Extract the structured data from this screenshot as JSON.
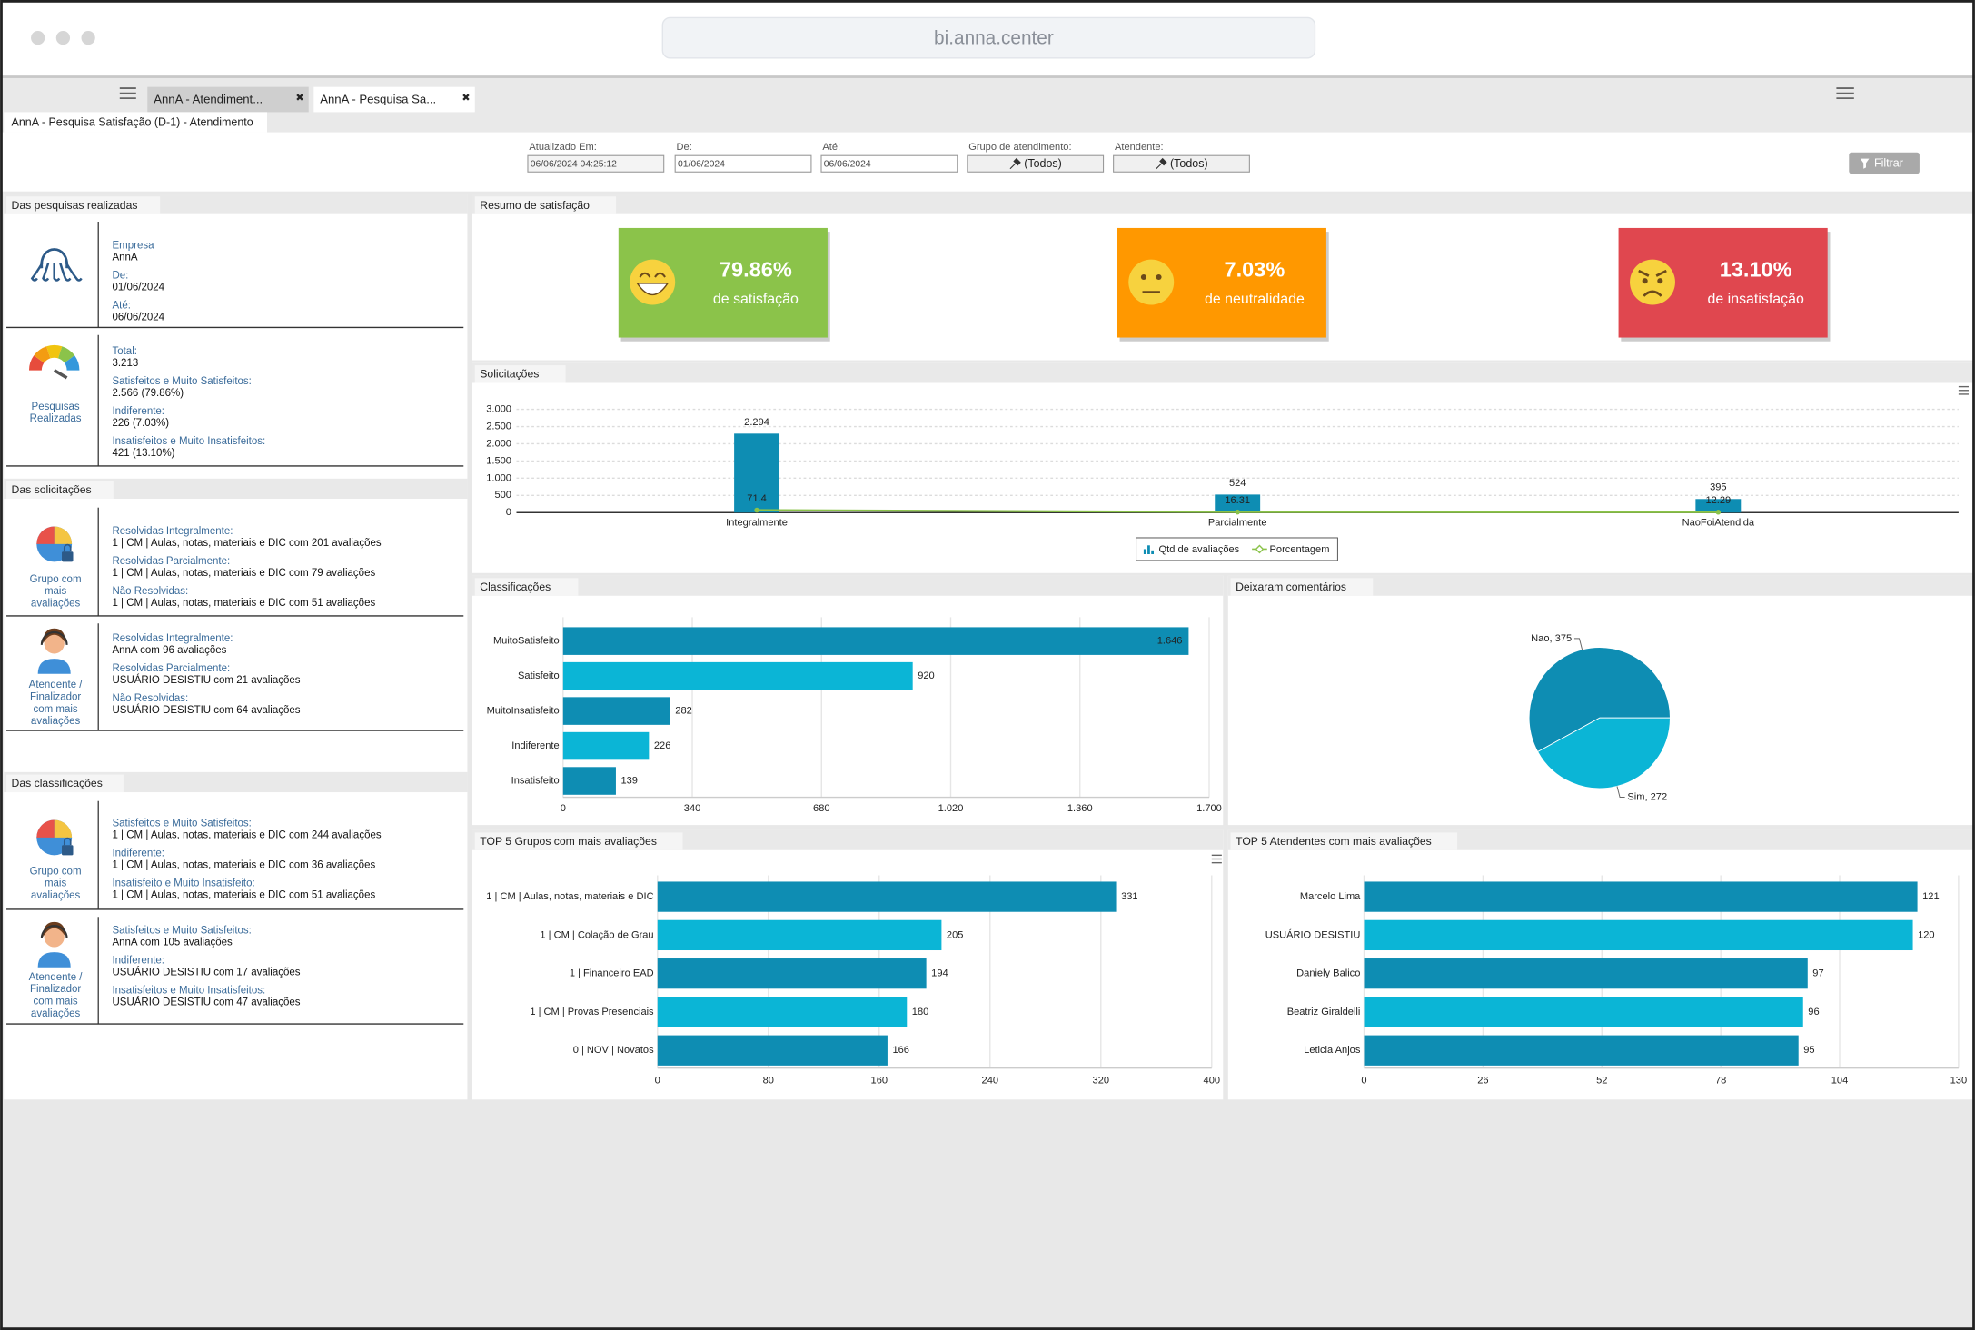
{
  "browser": {
    "url": "bi.anna.center"
  },
  "tabs": [
    "AnnA - Atendiment...",
    "AnnA - Pesquisa Sa..."
  ],
  "page_title": "AnnA - Pesquisa Satisfação (D-1) - Atendimento",
  "filters": [
    {
      "label": "Atualizado Em:",
      "value": "06/06/2024 04:25:12"
    },
    {
      "label": "De:",
      "value": "01/06/2024"
    },
    {
      "label": "Até:",
      "value": "06/06/2024"
    },
    {
      "label": "Grupo de atendimento:",
      "value": "(Todos)"
    },
    {
      "label": "Atendente:",
      "value": "(Todos)"
    }
  ],
  "filter_button": "Filtrar",
  "left_panel": {
    "sections": [
      {
        "title": "Das pesquisas realizadas",
        "blocks": [
          {
            "items": [
              {
                "label": "Empresa",
                "value": "AnnA"
              },
              {
                "label": "De:",
                "value": "01/06/2024"
              },
              {
                "label": "Até:",
                "value": "06/06/2024"
              }
            ]
          },
          {
            "icon_label": [
              "Pesquisas",
              "Realizadas"
            ],
            "items": [
              {
                "label": "Total:",
                "value": "3.213"
              },
              {
                "label": "Satisfeitos e Muito Satisfeitos:",
                "value": "2.566 (79.86%)"
              },
              {
                "label": "Indiferente:",
                "value": "226 (7.03%)"
              },
              {
                "label": "Insatisfeitos e Muito Insatisfeitos:",
                "value": "421 (13.10%)"
              }
            ]
          }
        ]
      },
      {
        "title": "Das solicitações",
        "blocks": [
          {
            "icon_label": [
              "Grupo com",
              "mais",
              "avaliações"
            ],
            "items": [
              {
                "label": "Resolvidas Integralmente:",
                "value": "1 | CM | Aulas, notas, materiais e DIC com 201 avaliações"
              },
              {
                "label": "Resolvidas Parcialmente:",
                "value": "1 | CM | Aulas, notas, materiais e DIC com 79 avaliações"
              },
              {
                "label": "Não Resolvidas:",
                "value": "1 | CM | Aulas, notas, materiais e DIC com 51 avaliações"
              }
            ]
          },
          {
            "icon_label": [
              "Atendente /",
              "Finalizador",
              "com mais",
              "avaliações"
            ],
            "items": [
              {
                "label": "Resolvidas Integralmente:",
                "value": "AnnA  com 96 avaliações"
              },
              {
                "label": "Resolvidas Parcialmente:",
                "value": "USUÁRIO DESISTIU com 21 avaliações"
              },
              {
                "label": "Não Resolvidas:",
                "value": "USUÁRIO DESISTIU com 64 avaliações"
              }
            ]
          }
        ]
      },
      {
        "title": "Das classificações",
        "blocks": [
          {
            "icon_label": [
              "Grupo com",
              "mais",
              "avaliações"
            ],
            "items": [
              {
                "label": "Satisfeitos e Muito Satisfeitos:",
                "value": "1 | CM | Aulas, notas, materiais e DIC com 244 avaliações"
              },
              {
                "label": "Indiferente:",
                "value": "1 | CM | Aulas, notas, materiais e DIC com 36 avaliações"
              },
              {
                "label": "Insatisfeito e Muito Insatisfeito:",
                "value": "1 | CM | Aulas, notas, materiais e DIC com 51 avaliações"
              }
            ]
          },
          {
            "icon_label": [
              "Atendente /",
              "Finalizador",
              "com mais",
              "avaliações"
            ],
            "items": [
              {
                "label": "Satisfeitos e Muito Satisfeitos:",
                "value": "AnnA com 105 avaliações"
              },
              {
                "label": "Indiferente:",
                "value": "USUÁRIO DESISTIU com 17 avaliações"
              },
              {
                "label": "Insatisfeitos e Muito Insatisfeitos:",
                "value": "USUÁRIO DESISTIU com 47 avaliações"
              }
            ]
          }
        ]
      }
    ]
  },
  "summary": {
    "title": "Resumo de satisfação",
    "cards": [
      {
        "value": "79.86%",
        "label": "de satisfação",
        "color": "#8bc34a"
      },
      {
        "value": "7.03%",
        "label": "de neutralidade",
        "color": "#ff9800"
      },
      {
        "value": "13.10%",
        "label": "de insatisfação",
        "color": "#e0474f"
      }
    ]
  },
  "chart_data": [
    {
      "type": "combo",
      "title": "Solicitações",
      "categories": [
        "Integralmente",
        "Parcialmente",
        "NaoFoiAtendida"
      ],
      "series": [
        {
          "name": "Qtd de avaliações",
          "type": "bar",
          "color": "#0e8db3",
          "values": [
            2294,
            524,
            395
          ],
          "value_labels": [
            "2.294",
            "524",
            "395"
          ]
        },
        {
          "name": "Porcentagem",
          "type": "line",
          "color": "#8bc34a",
          "values": [
            71.4,
            16.31,
            12.29
          ]
        }
      ],
      "ylim": [
        0,
        3000
      ],
      "yticks": [
        0,
        500,
        {
          "value": 1000,
          "label": "1.000"
        },
        {
          "value": 1500,
          "label": "1.500"
        },
        {
          "value": 2000,
          "label": "2.000"
        },
        {
          "value": 2500,
          "label": "2.500"
        },
        {
          "value": 3000,
          "label": "3.000"
        }
      ],
      "grid": true,
      "legend": "bottom"
    },
    {
      "type": "hbar",
      "title": "Classificações",
      "categories": [
        "MuitoSatisfeito",
        "Satisfeito",
        "MuitoInsatisfeito",
        "Indiferente",
        "Insatisfeito"
      ],
      "values": [
        1646,
        920,
        282,
        226,
        139
      ],
      "value_labels": [
        "1.646",
        "920",
        "282",
        "226",
        "139"
      ],
      "colors": [
        "#0e8db3",
        "#0bb5d6",
        "#0e8db3",
        "#0bb5d6",
        "#0e8db3"
      ],
      "xlim": [
        0,
        1700
      ],
      "xticks": [
        0,
        340,
        680,
        {
          "value": 1020,
          "label": "1.020"
        },
        {
          "value": 1360,
          "label": "1.360"
        },
        {
          "value": 1700,
          "label": "1.700"
        }
      ],
      "grid": true
    },
    {
      "type": "pie",
      "title": "Deixaram comentários",
      "categories": [
        "Nao",
        "Sim"
      ],
      "values": [
        375,
        272
      ],
      "value_labels": [
        "Nao, 375",
        "Sim, 272"
      ],
      "colors": [
        "#0e8db3",
        "#0bb5d6"
      ]
    },
    {
      "type": "hbar",
      "title": "TOP 5 Grupos com mais avaliações",
      "categories": [
        "1 | CM | Aulas, notas, materiais e DIC",
        "1 | CM | Colação de Grau",
        "1 | Financeiro EAD",
        "1 | CM | Provas Presenciais",
        "0 | NOV | Novatos"
      ],
      "values": [
        331,
        205,
        194,
        180,
        166
      ],
      "colors": [
        "#0e8db3",
        "#0bb5d6",
        "#0e8db3",
        "#0bb5d6",
        "#0e8db3"
      ],
      "xlim": [
        0,
        400
      ],
      "xticks": [
        0,
        80,
        160,
        240,
        320,
        400
      ],
      "grid": true
    },
    {
      "type": "hbar",
      "title": "TOP 5 Atendentes com mais avaliações",
      "categories": [
        "Marcelo Lima",
        "USUÁRIO DESISTIU",
        "Daniely Balico",
        "Beatriz Giraldelli",
        "Leticia Anjos"
      ],
      "values": [
        121,
        120,
        97,
        96,
        95
      ],
      "colors": [
        "#0e8db3",
        "#0bb5d6",
        "#0e8db3",
        "#0bb5d6",
        "#0e8db3"
      ],
      "xlim": [
        0,
        130
      ],
      "xticks": [
        0,
        26,
        52,
        78,
        104,
        130
      ],
      "grid": true
    }
  ]
}
